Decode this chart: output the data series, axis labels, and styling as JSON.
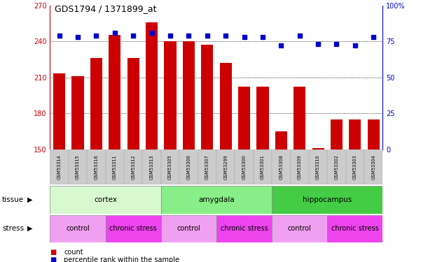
{
  "title": "GDS1794 / 1371899_at",
  "samples": [
    "GSM53314",
    "GSM53315",
    "GSM53316",
    "GSM53311",
    "GSM53312",
    "GSM53313",
    "GSM53305",
    "GSM53306",
    "GSM53307",
    "GSM53299",
    "GSM53300",
    "GSM53301",
    "GSM53308",
    "GSM53309",
    "GSM53310",
    "GSM53302",
    "GSM53303",
    "GSM53304"
  ],
  "counts": [
    213,
    211,
    226,
    245,
    226,
    256,
    240,
    240,
    237,
    222,
    202,
    202,
    165,
    202,
    151,
    175,
    175,
    175
  ],
  "percentiles": [
    79,
    78,
    79,
    81,
    79,
    81,
    79,
    79,
    79,
    79,
    78,
    78,
    72,
    79,
    73,
    73,
    72,
    78
  ],
  "ylim_left": [
    150,
    270
  ],
  "ylim_right": [
    0,
    100
  ],
  "yticks_left": [
    150,
    180,
    210,
    240,
    270
  ],
  "yticks_right": [
    0,
    25,
    50,
    75,
    100
  ],
  "bar_color": "#cc0000",
  "dot_color": "#0000cc",
  "xticklabel_bg": "#d0d0d0",
  "tissue_groups": [
    {
      "label": "cortex",
      "start": 0,
      "end": 6,
      "color": "#d8f8d0"
    },
    {
      "label": "amygdala",
      "start": 6,
      "end": 12,
      "color": "#88ee88"
    },
    {
      "label": "hippocampus",
      "start": 12,
      "end": 18,
      "color": "#44cc44"
    }
  ],
  "stress_groups": [
    {
      "label": "control",
      "start": 0,
      "end": 3,
      "color": "#f0a0f0"
    },
    {
      "label": "chronic stress",
      "start": 3,
      "end": 6,
      "color": "#ee44ee"
    },
    {
      "label": "control",
      "start": 6,
      "end": 9,
      "color": "#f0a0f0"
    },
    {
      "label": "chronic stress",
      "start": 9,
      "end": 12,
      "color": "#ee44ee"
    },
    {
      "label": "control",
      "start": 12,
      "end": 15,
      "color": "#f0a0f0"
    },
    {
      "label": "chronic stress",
      "start": 15,
      "end": 18,
      "color": "#ee44ee"
    }
  ],
  "legend_count_color": "#cc0000",
  "legend_pct_color": "#0000cc"
}
